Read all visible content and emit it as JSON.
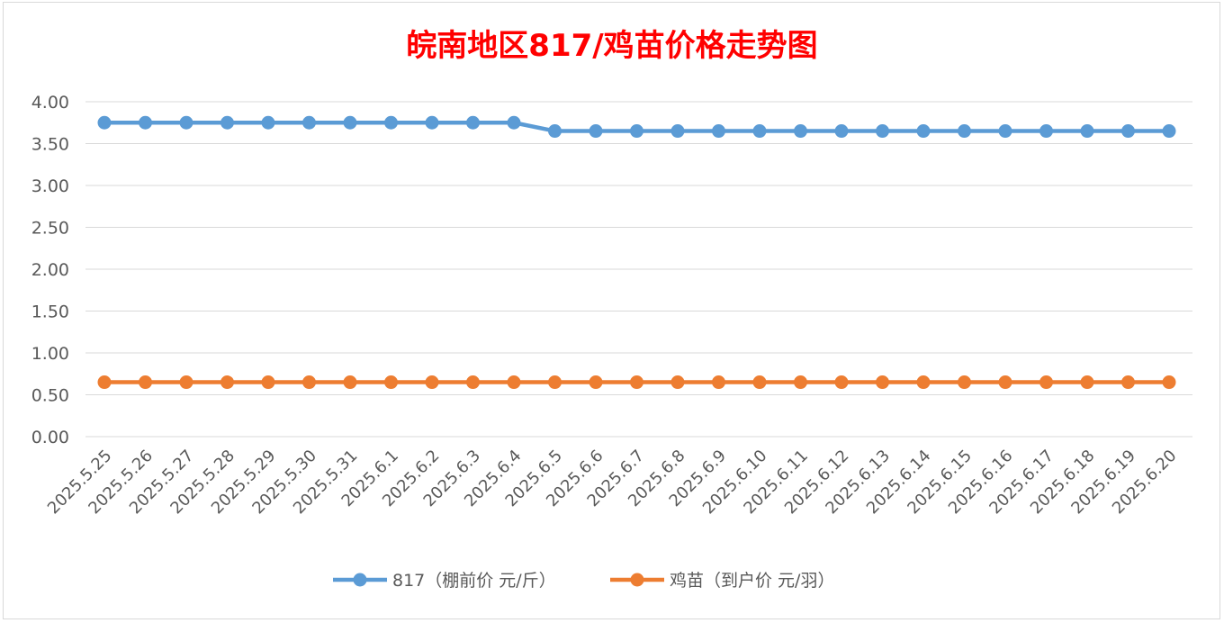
{
  "chart_data": {
    "type": "line",
    "title": "皖南地区817/鸡苗价格走势图",
    "title_color": "#ff0000",
    "categories": [
      "2025.5.25",
      "2025.5.26",
      "2025.5.27",
      "2025.5.28",
      "2025.5.29",
      "2025.5.30",
      "2025.5.31",
      "2025.6.1",
      "2025.6.2",
      "2025.6.3",
      "2025.6.4",
      "2025.6.5",
      "2025.6.6",
      "2025.6.7",
      "2025.6.8",
      "2025.6.9",
      "2025.6.10",
      "2025.6.11",
      "2025.6.12",
      "2025.6.13",
      "2025.6.14",
      "2025.6.15",
      "2025.6.16",
      "2025.6.17",
      "2025.6.18",
      "2025.6.19",
      "2025.6.20"
    ],
    "series": [
      {
        "name": "817（棚前价 元/斤）",
        "color": "#5b9bd5",
        "values": [
          3.75,
          3.75,
          3.75,
          3.75,
          3.75,
          3.75,
          3.75,
          3.75,
          3.75,
          3.75,
          3.75,
          3.65,
          3.65,
          3.65,
          3.65,
          3.65,
          3.65,
          3.65,
          3.65,
          3.65,
          3.65,
          3.65,
          3.65,
          3.65,
          3.65,
          3.65,
          3.65
        ]
      },
      {
        "name": "鸡苗（到户价 元/羽）",
        "color": "#ed7d31",
        "values": [
          0.65,
          0.65,
          0.65,
          0.65,
          0.65,
          0.65,
          0.65,
          0.65,
          0.65,
          0.65,
          0.65,
          0.65,
          0.65,
          0.65,
          0.65,
          0.65,
          0.65,
          0.65,
          0.65,
          0.65,
          0.65,
          0.65,
          0.65,
          0.65,
          0.65,
          0.65,
          0.65
        ]
      }
    ],
    "ylim": [
      0,
      4
    ],
    "yticks": [
      "0.00",
      "0.50",
      "1.00",
      "1.50",
      "2.00",
      "2.50",
      "3.00",
      "3.50",
      "4.00"
    ],
    "grid": true,
    "legend_position": "bottom",
    "xlabel": "",
    "ylabel": ""
  }
}
